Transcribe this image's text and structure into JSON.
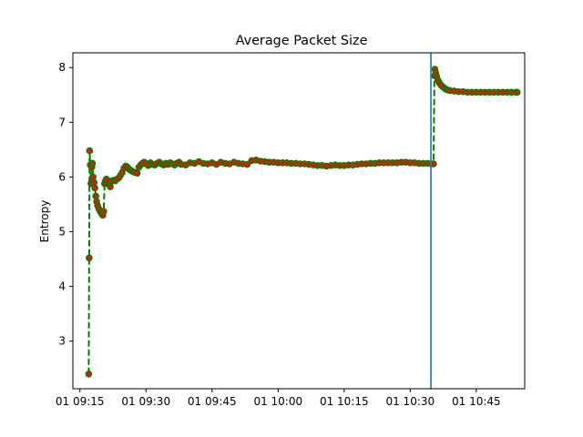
{
  "chart_data": {
    "type": "line",
    "title": "Average Packet Size",
    "xlabel": "",
    "ylabel": "Entropy",
    "x_tick_labels": [
      "01 09:15",
      "01 09:30",
      "01 09:45",
      "01 10:00",
      "01 10:15",
      "01 10:30",
      "01 10:45"
    ],
    "x_tick_minutes": [
      555,
      570,
      585,
      600,
      615,
      630,
      645
    ],
    "xlim_minutes": [
      553.4,
      656.0
    ],
    "ylim": [
      2.13,
      8.27
    ],
    "y_ticks": [
      3,
      4,
      5,
      6,
      7,
      8
    ],
    "vline_minute": 634.7,
    "series": [
      {
        "line_color": "#008000",
        "line_style": "dashed",
        "marker_face": "#cc2200",
        "marker_edge": "#008000",
        "points": [
          [
            557.0,
            2.4
          ],
          [
            557.1,
            4.52
          ],
          [
            557.2,
            6.48
          ],
          [
            557.35,
            6.22
          ],
          [
            557.5,
            5.88
          ],
          [
            557.7,
            6.18
          ],
          [
            557.85,
            6.25
          ],
          [
            558.0,
            6.0
          ],
          [
            558.2,
            5.9
          ],
          [
            558.4,
            5.8
          ],
          [
            558.6,
            5.65
          ],
          [
            558.8,
            5.55
          ],
          [
            559.0,
            5.48
          ],
          [
            559.3,
            5.42
          ],
          [
            559.6,
            5.37
          ],
          [
            559.9,
            5.33
          ],
          [
            560.2,
            5.3
          ],
          [
            560.4,
            5.37
          ],
          [
            560.6,
            5.88
          ],
          [
            560.8,
            5.93
          ],
          [
            561.0,
            5.96
          ],
          [
            561.3,
            5.94
          ],
          [
            561.6,
            5.86
          ],
          [
            561.9,
            5.82
          ],
          [
            562.2,
            5.92
          ],
          [
            562.6,
            5.94
          ],
          [
            563.0,
            5.93
          ],
          [
            563.4,
            5.96
          ],
          [
            563.8,
            5.98
          ],
          [
            564.2,
            6.03
          ],
          [
            564.6,
            6.08
          ],
          [
            565.0,
            6.16
          ],
          [
            565.4,
            6.2
          ],
          [
            565.8,
            6.18
          ],
          [
            566.2,
            6.14
          ],
          [
            566.6,
            6.12
          ],
          [
            567.0,
            6.1
          ],
          [
            567.5,
            6.08
          ],
          [
            568.0,
            6.07
          ],
          [
            568.4,
            6.18
          ],
          [
            568.8,
            6.22
          ],
          [
            569.2,
            6.25
          ],
          [
            569.6,
            6.27
          ],
          [
            570.0,
            6.24
          ],
          [
            570.5,
            6.21
          ],
          [
            571.0,
            6.26
          ],
          [
            571.5,
            6.23
          ],
          [
            572.0,
            6.22
          ],
          [
            572.5,
            6.25
          ],
          [
            573.0,
            6.27
          ],
          [
            573.5,
            6.24
          ],
          [
            574.0,
            6.22
          ],
          [
            574.5,
            6.25
          ],
          [
            575.0,
            6.23
          ],
          [
            575.5,
            6.26
          ],
          [
            576.0,
            6.24
          ],
          [
            576.5,
            6.22
          ],
          [
            577.0,
            6.25
          ],
          [
            577.5,
            6.27
          ],
          [
            578.0,
            6.23
          ],
          [
            579.0,
            6.22
          ],
          [
            580.0,
            6.26
          ],
          [
            581.0,
            6.25
          ],
          [
            582.0,
            6.28
          ],
          [
            583.0,
            6.25
          ],
          [
            584.0,
            6.24
          ],
          [
            585.0,
            6.26
          ],
          [
            586.0,
            6.23
          ],
          [
            587.0,
            6.27
          ],
          [
            588.0,
            6.25
          ],
          [
            589.0,
            6.24
          ],
          [
            590.0,
            6.27
          ],
          [
            591.0,
            6.25
          ],
          [
            592.0,
            6.24
          ],
          [
            593.0,
            6.23
          ],
          [
            594.0,
            6.3
          ],
          [
            595.0,
            6.31
          ],
          [
            596.0,
            6.29
          ],
          [
            597.0,
            6.28
          ],
          [
            598.0,
            6.27
          ],
          [
            599.0,
            6.27
          ],
          [
            600.0,
            6.26
          ],
          [
            601.0,
            6.26
          ],
          [
            602.0,
            6.26
          ],
          [
            603.0,
            6.25
          ],
          [
            604.0,
            6.25
          ],
          [
            605.0,
            6.24
          ],
          [
            606.0,
            6.24
          ],
          [
            607.0,
            6.23
          ],
          [
            608.0,
            6.22
          ],
          [
            609.0,
            6.21
          ],
          [
            610.0,
            6.21
          ],
          [
            611.0,
            6.2
          ],
          [
            612.0,
            6.21
          ],
          [
            613.0,
            6.22
          ],
          [
            614.0,
            6.21
          ],
          [
            615.0,
            6.21
          ],
          [
            616.0,
            6.22
          ],
          [
            617.0,
            6.22
          ],
          [
            618.0,
            6.23
          ],
          [
            619.0,
            6.24
          ],
          [
            620.0,
            6.24
          ],
          [
            621.0,
            6.25
          ],
          [
            622.0,
            6.25
          ],
          [
            623.0,
            6.26
          ],
          [
            624.0,
            6.26
          ],
          [
            625.0,
            6.26
          ],
          [
            626.0,
            6.26
          ],
          [
            627.0,
            6.26
          ],
          [
            628.0,
            6.27
          ],
          [
            629.0,
            6.27
          ],
          [
            630.0,
            6.26
          ],
          [
            631.0,
            6.26
          ],
          [
            632.0,
            6.25
          ],
          [
            633.0,
            6.25
          ],
          [
            634.0,
            6.25
          ],
          [
            635.0,
            6.24
          ],
          [
            635.3,
            6.24
          ],
          [
            635.5,
            7.85
          ],
          [
            635.6,
            7.97
          ],
          [
            635.8,
            7.9
          ],
          [
            636.0,
            7.84
          ],
          [
            636.3,
            7.77
          ],
          [
            636.6,
            7.72
          ],
          [
            637.0,
            7.68
          ],
          [
            637.5,
            7.64
          ],
          [
            638.0,
            7.61
          ],
          [
            638.5,
            7.59
          ],
          [
            639.0,
            7.58
          ],
          [
            640.0,
            7.57
          ],
          [
            641.0,
            7.56
          ],
          [
            642.0,
            7.56
          ],
          [
            643.0,
            7.55
          ],
          [
            644.0,
            7.55
          ],
          [
            645.0,
            7.55
          ],
          [
            646.0,
            7.55
          ],
          [
            647.0,
            7.55
          ],
          [
            648.0,
            7.55
          ],
          [
            649.0,
            7.55
          ],
          [
            650.0,
            7.55
          ],
          [
            651.0,
            7.55
          ],
          [
            652.0,
            7.55
          ],
          [
            653.0,
            7.55
          ],
          [
            654.0,
            7.55
          ],
          [
            654.3,
            7.55
          ]
        ]
      }
    ],
    "vline_color": "#1f77b4"
  }
}
